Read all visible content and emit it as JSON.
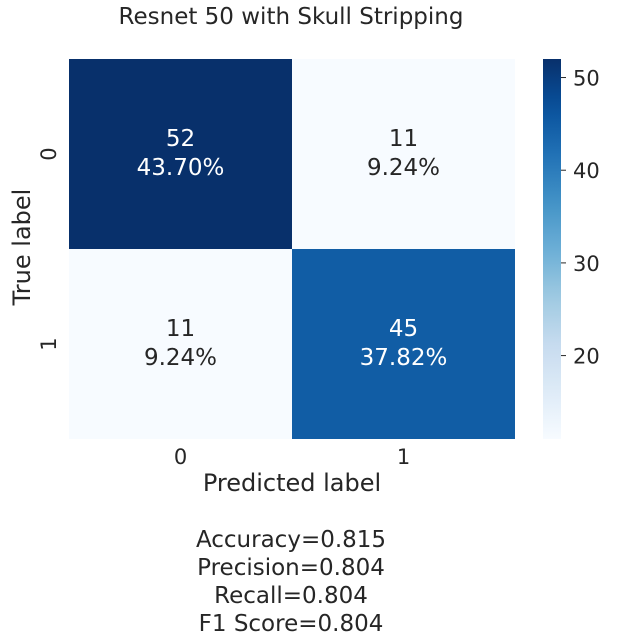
{
  "chart_data": {
    "type": "heatmap",
    "title": "Resnet 50 with Skull Stripping",
    "xlabel": "Predicted label",
    "ylabel": "True label",
    "x_categories": [
      "0",
      "1"
    ],
    "y_categories": [
      "0",
      "1"
    ],
    "cells": [
      [
        {
          "count": "52",
          "percent": "43.70%",
          "value": 52
        },
        {
          "count": "11",
          "percent": "9.24%",
          "value": 11
        }
      ],
      [
        {
          "count": "11",
          "percent": "9.24%",
          "value": 11
        },
        {
          "count": "45",
          "percent": "37.82%",
          "value": 45
        }
      ]
    ],
    "colorbar": {
      "min": 11,
      "max": 52,
      "ticks": [
        "20",
        "30",
        "40",
        "50"
      ],
      "tick_values": [
        20,
        30,
        40,
        50
      ],
      "colormap": "Blues"
    },
    "metrics": [
      "Accuracy=0.815",
      "Precision=0.804",
      "Recall=0.804",
      "F1 Score=0.804"
    ]
  }
}
